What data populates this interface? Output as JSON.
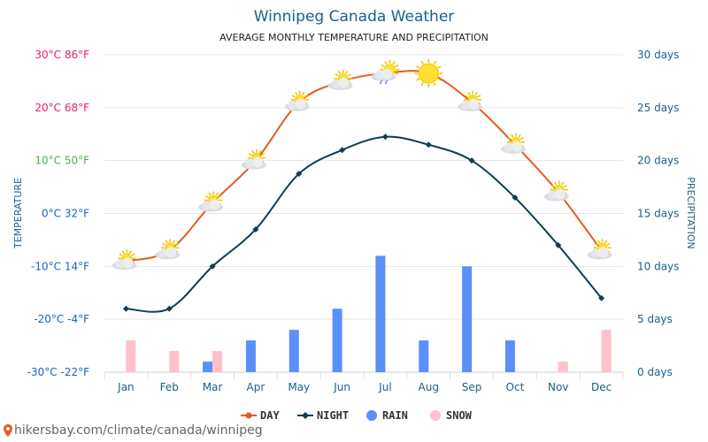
{
  "chart_data": {
    "type": "line",
    "title": "Winnipeg Canada Weather",
    "subtitle": "AVERAGE MONTHLY TEMPERATURE AND PRECIPITATION",
    "left_axis_label": "TEMPERATURE",
    "right_axis_label": "PRECIPITATION",
    "categories": [
      "Jan",
      "Feb",
      "Mar",
      "Apr",
      "May",
      "Jun",
      "Jul",
      "Aug",
      "Sep",
      "Oct",
      "Nov",
      "Dec"
    ],
    "temperature_axis": {
      "min": -30,
      "max": 30,
      "step": 10,
      "tick_labels": [
        "30°C 86°F",
        "20°C 68°F",
        "10°C 50°F",
        "0°C 32°F",
        "-10°C 14°F",
        "-20°C -4°F",
        "-30°C -22°F"
      ],
      "tick_colors": [
        "#e91e63",
        "#e91e63",
        "#4caf50",
        "#1565c0",
        "#1565c0",
        "#1565c0",
        "#1565c0"
      ]
    },
    "precip_axis": {
      "min": 0,
      "max": 30,
      "step": 5,
      "tick_labels": [
        "30 days",
        "25 days",
        "20 days",
        "15 days",
        "10 days",
        "5 days",
        "0 days"
      ]
    },
    "series": [
      {
        "name": "DAY",
        "kind": "line",
        "color": "#e85a1b",
        "values": [
          -9,
          -7,
          2,
          10,
          21,
          25,
          26.5,
          26.5,
          21,
          13,
          4,
          -7
        ]
      },
      {
        "name": "NIGHT",
        "kind": "line",
        "color": "#0f3d52",
        "values": [
          -18,
          -18,
          -10,
          -3,
          7.5,
          12,
          14.5,
          13,
          10,
          3,
          -6,
          -16
        ]
      },
      {
        "name": "RAIN",
        "kind": "bar",
        "color": "#5b8ff9",
        "values": [
          0,
          0,
          1,
          3,
          4,
          6,
          11,
          3,
          10,
          3,
          0,
          0
        ]
      },
      {
        "name": "SNOW",
        "kind": "bar",
        "color": "#ffc0cb",
        "values": [
          3,
          2,
          2,
          0,
          0,
          0,
          0,
          0,
          0,
          0,
          1,
          4
        ]
      }
    ],
    "day_icons": [
      "partly-cloudy",
      "partly-cloudy",
      "partly-cloudy",
      "partly-cloudy",
      "partly-cloudy",
      "partly-cloudy",
      "rain-cloud",
      "sunny",
      "partly-cloudy",
      "partly-cloudy",
      "partly-cloudy",
      "partly-cloudy"
    ],
    "legend": {
      "placement": "bottom",
      "items": [
        "DAY",
        "NIGHT",
        "RAIN",
        "SNOW"
      ]
    },
    "grid": true
  },
  "colors": {
    "title": "#1a5f8a",
    "axis_text": "#1a5f8a",
    "grid": "#e6e6e6",
    "day": "#e85a1b",
    "night": "#0f3d52",
    "rain": "#5b8ff9",
    "snow": "#ffc0cb"
  },
  "footer": {
    "text": "hikersbay.com/climate/canada/winnipeg"
  }
}
